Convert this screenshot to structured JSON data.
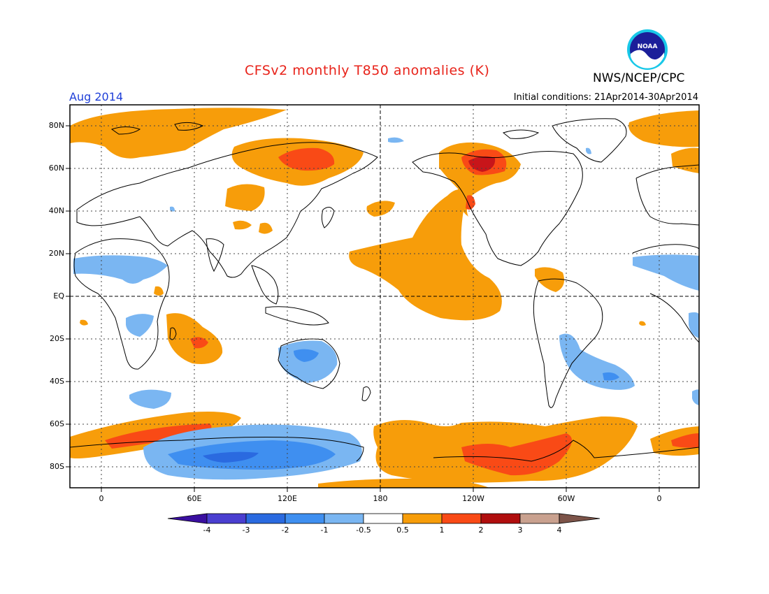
{
  "header": {
    "title": "CFSv2 monthly T850 anomalies (K)",
    "org": "NWS/NCEP/CPC",
    "month": "Aug 2014",
    "initial_label": "Initial conditions:",
    "initial_range": "21Apr2014-30Apr2014"
  },
  "logo": {
    "text": "NOAA",
    "icon": "noaa-logo-icon"
  },
  "axes": {
    "lat_labels": [
      "80N",
      "60N",
      "40N",
      "20N",
      "EQ",
      "20S",
      "40S",
      "60S",
      "80S"
    ],
    "lon_labels": [
      "0",
      "60E",
      "120E",
      "180",
      "120W",
      "60W",
      "0"
    ]
  },
  "colorbar": {
    "labels": [
      "-4",
      "-3",
      "-2",
      "-1",
      "-0.5",
      "0.5",
      "1",
      "2",
      "3",
      "4"
    ],
    "colors": [
      "#3a0fa0",
      "#4a3fd0",
      "#2a6ae0",
      "#3f8ff0",
      "#7ab6f2",
      "#ffffff",
      "#f79d0a",
      "#f94a16",
      "#b00e0e",
      "#c9a18f",
      "#7d5449"
    ]
  },
  "palette": {
    "orange": "#f79d0a",
    "red_orange": "#f94a16",
    "dark_red": "#c8151a",
    "light_blue": "#7ab6f2",
    "blue": "#3f8ff0",
    "deep_blue": "#2a6ae0"
  }
}
